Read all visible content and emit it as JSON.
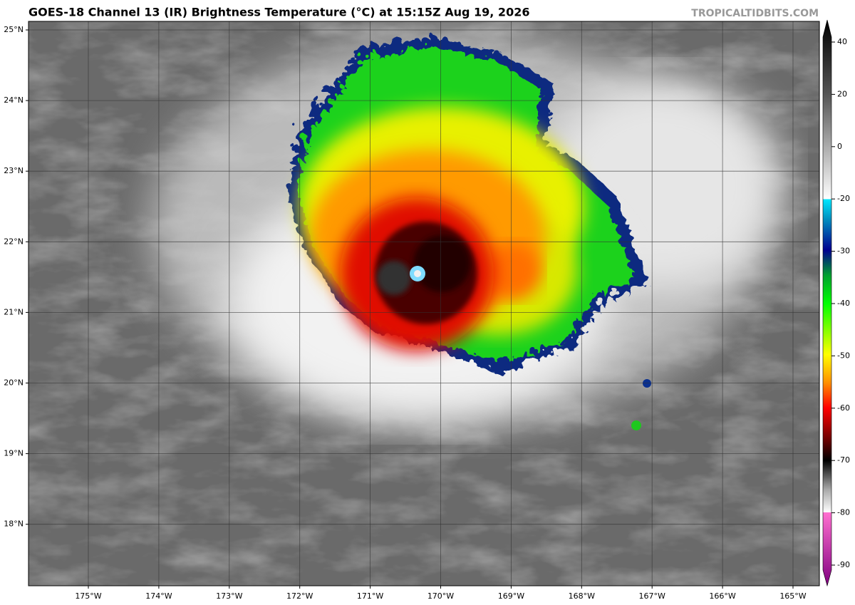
{
  "header": {
    "title": "GOES-18 Channel 13 (IR) Brightness Temperature (°C) at 15:15Z Aug 19, 2026",
    "watermark": "TROPICALTIDBITS.COM"
  },
  "map": {
    "lat_labels": [
      {
        "value": 25,
        "label": "25°N"
      },
      {
        "value": 24,
        "label": "24°N"
      },
      {
        "value": 23,
        "label": "23°N"
      },
      {
        "value": 22,
        "label": "22°N"
      },
      {
        "value": 21,
        "label": "21°N"
      },
      {
        "value": 20,
        "label": "20°N"
      },
      {
        "value": 19,
        "label": "19°N"
      },
      {
        "value": 18,
        "label": "18°N"
      }
    ],
    "lon_labels": [
      {
        "value": -175,
        "label": "175°W"
      },
      {
        "value": -174,
        "label": "174°W"
      },
      {
        "value": -173,
        "label": "173°W"
      },
      {
        "value": -172,
        "label": "172°W"
      },
      {
        "value": -171,
        "label": "171°W"
      },
      {
        "value": -170,
        "label": "170°W"
      },
      {
        "value": -169,
        "label": "169°W"
      },
      {
        "value": -168,
        "label": "168°W"
      },
      {
        "value": -167,
        "label": "167°W"
      },
      {
        "value": -166,
        "label": "166°W"
      },
      {
        "value": -165,
        "label": "165°W"
      }
    ]
  },
  "colorbar": {
    "ticks": [
      40,
      20,
      0,
      -20,
      -30,
      -40,
      -50,
      -60,
      -70,
      -80,
      -90
    ]
  }
}
